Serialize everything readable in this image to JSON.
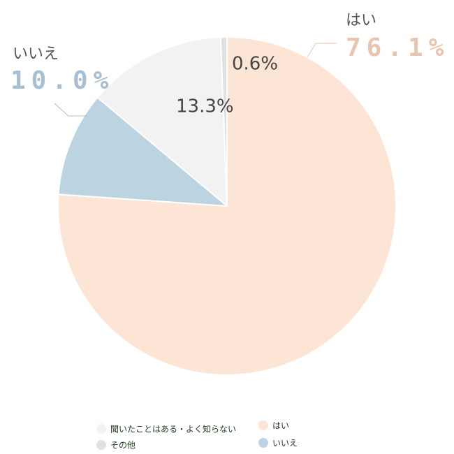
{
  "chart_data": {
    "type": "pie",
    "categories": [
      "聞いたことはある・よく知らない",
      "その他",
      "はい",
      "いいえ"
    ],
    "values": [
      13.3,
      0.6,
      76.1,
      10.0
    ],
    "value_labels": [
      "13.3%",
      "0.6%",
      "76.1%",
      "10.0%"
    ],
    "colors": [
      "#f2f2f2",
      "#e0e0e0",
      "#fde5d6",
      "#bcd3e2"
    ]
  }
}
